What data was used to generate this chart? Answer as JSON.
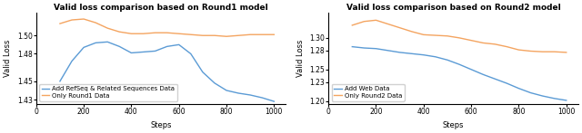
{
  "title1": "Valid loss comparison based on Round1 model",
  "title2": "Valid loss comparison based on Round2 model",
  "xlabel": "Steps",
  "ylabel": "Valid Loss",
  "steps1": [
    100,
    150,
    200,
    250,
    300,
    350,
    400,
    450,
    500,
    550,
    600,
    650,
    700,
    750,
    800,
    850,
    900,
    950,
    1000
  ],
  "blue1_raw": [
    1.45,
    1.472,
    1.487,
    1.492,
    1.493,
    1.488,
    1.481,
    1.482,
    1.483,
    1.488,
    1.49,
    1.48,
    1.46,
    1.448,
    1.44,
    1.437,
    1.435,
    1.432,
    1.428
  ],
  "orange1_raw": [
    1.513,
    1.517,
    1.518,
    1.514,
    1.508,
    1.504,
    1.502,
    1.502,
    1.503,
    1.503,
    1.502,
    1.501,
    1.5,
    1.5,
    1.499,
    1.5,
    1.501,
    1.501,
    1.501
  ],
  "steps2": [
    100,
    150,
    200,
    250,
    300,
    350,
    400,
    450,
    500,
    550,
    600,
    650,
    700,
    750,
    800,
    850,
    900,
    950,
    1000
  ],
  "blue2_raw": [
    1.286,
    1.284,
    1.283,
    1.28,
    1.277,
    1.275,
    1.273,
    1.27,
    1.265,
    1.258,
    1.25,
    1.242,
    1.235,
    1.228,
    1.22,
    1.213,
    1.208,
    1.204,
    1.201
  ],
  "orange2_raw": [
    1.32,
    1.326,
    1.328,
    1.322,
    1.316,
    1.31,
    1.305,
    1.304,
    1.303,
    1.3,
    1.296,
    1.292,
    1.29,
    1.286,
    1.281,
    1.279,
    1.278,
    1.278,
    1.277
  ],
  "blue_color": "#5B9BD5",
  "orange_color": "#F4A460",
  "legend1_blue": "Add RefSeq & Related Sequences Data",
  "legend1_orange": "Only Round1 Data",
  "legend2_blue": "Add Web Data",
  "legend2_orange": "Only Round2 Data",
  "ylim1": [
    1.425,
    1.525
  ],
  "ylim1_ticks": [
    1.43,
    1.45,
    1.48,
    1.5
  ],
  "ylim2": [
    1.195,
    1.34
  ],
  "ylim2_ticks": [
    1.2,
    1.23,
    1.25,
    1.28,
    1.3
  ],
  "xlim": [
    0,
    1050
  ],
  "xticks": [
    0,
    200,
    400,
    600,
    800,
    1000
  ]
}
